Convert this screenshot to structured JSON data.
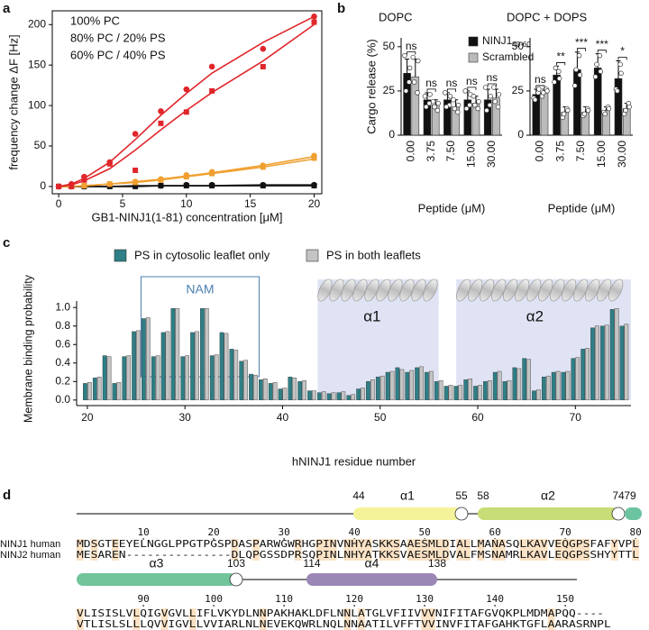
{
  "panel_labels": [
    "a",
    "b",
    "c",
    "d"
  ],
  "chart_data": [
    {
      "type": "line",
      "xlabel": "GB1-NINJ1(1-81) concentration [μM]",
      "ylabel": "frequency change ΔF [Hz]",
      "x": [
        0,
        1,
        2,
        4,
        6,
        8,
        10,
        12,
        16,
        20
      ],
      "xlim": [
        -0.5,
        20.6
      ],
      "ylim": [
        -9,
        217
      ],
      "xticks": [
        0,
        5,
        10,
        15,
        20
      ],
      "yticks": [
        0,
        50,
        100,
        150,
        200
      ],
      "legend": "upper left",
      "series": [
        {
          "name": "100% PC",
          "color": "#111111",
          "replicates": [
            {
              "marker": "circle",
              "values": [
                0,
                0,
                0,
                1,
                1,
                1,
                2,
                2,
                2,
                2
              ],
              "fit": [
                0,
                0,
                0,
                0,
                1,
                1,
                1,
                1,
                2,
                2
              ]
            },
            {
              "marker": "square",
              "values": [
                0,
                0,
                0,
                0,
                0,
                1,
                1,
                1,
                1,
                1
              ],
              "fit": [
                0,
                0,
                0,
                0,
                0,
                1,
                1,
                1,
                1,
                1
              ]
            }
          ]
        },
        {
          "name": "80% PC / 20% PS",
          "color": "#f0a030",
          "replicates": [
            {
              "marker": "circle",
              "values": [
                0,
                0,
                1,
                3,
                6,
                9,
                14,
                18,
                26,
                38
              ],
              "fit": [
                0,
                0,
                1,
                3,
                6,
                9,
                13,
                17,
                26,
                37
              ]
            },
            {
              "marker": "square",
              "values": [
                0,
                0,
                1,
                3,
                5,
                8,
                12,
                16,
                24,
                35
              ],
              "fit": [
                0,
                0,
                1,
                3,
                5,
                8,
                12,
                16,
                24,
                34
              ]
            }
          ]
        },
        {
          "name": "60% PC / 40% PS",
          "color": "#e0262b",
          "replicates": [
            {
              "marker": "circle",
              "values": [
                0,
                3,
                12,
                30,
                65,
                93,
                120,
                148,
                170,
                210
              ],
              "fit": [
                0,
                3,
                10,
                30,
                58,
                88,
                115,
                140,
                178,
                210
              ]
            },
            {
              "marker": "square",
              "values": [
                0,
                0,
                8,
                28,
                20,
                78,
                92,
                118,
                148,
                203
              ],
              "fit": [
                0,
                2,
                7,
                22,
                45,
                70,
                94,
                116,
                155,
                200
              ]
            }
          ]
        }
      ]
    },
    {
      "type": "bar",
      "title": "DOPC",
      "ylabel": "Cargo release (%)",
      "xlabel": "Peptide (μM)",
      "categories": [
        "0.00",
        "3.75",
        "7.50",
        "15.00",
        "30.00"
      ],
      "ylim": [
        0,
        55
      ],
      "yticks": [
        0,
        25,
        50
      ],
      "significance": [
        "ns",
        "ns",
        "ns",
        "ns",
        "ns"
      ],
      "series": [
        {
          "name": "NINJ1",
          "subscript": "40-60",
          "color": "#111111",
          "values": [
            35,
            20,
            20,
            20,
            20
          ],
          "errors": [
            8,
            4,
            4,
            5,
            6
          ],
          "points": [
            [
              45,
              30,
              25,
              38
            ],
            [
              22,
              18,
              16,
              23
            ],
            [
              24,
              17,
              16,
              22
            ],
            [
              25,
              17,
              15,
              23
            ],
            [
              27,
              17,
              14,
              22
            ]
          ]
        },
        {
          "name": "Scrambled",
          "color": "#bbbbbb",
          "values": [
            33,
            17,
            16,
            18,
            21
          ],
          "errors": [
            10,
            3,
            4,
            4,
            5
          ],
          "points": [
            [
              44,
              24,
              30,
              42
            ],
            [
              19,
              14,
              16,
              18
            ],
            [
              20,
              13,
              15,
              17
            ],
            [
              22,
              15,
              17,
              19
            ],
            [
              27,
              16,
              19,
              23
            ]
          ]
        }
      ]
    },
    {
      "type": "bar",
      "title": "DOPC + DOPS",
      "xlabel": "Peptide (μM)",
      "categories": [
        "0.00",
        "3.75",
        "7.50",
        "15.00",
        "30.00"
      ],
      "ylim": [
        0,
        55
      ],
      "yticks": [
        0,
        25,
        50
      ],
      "significance": [
        "ns",
        "**",
        "***",
        "***",
        "*"
      ],
      "series": [
        {
          "color": "#111111",
          "values": [
            23,
            34,
            37,
            38,
            32
          ],
          "errors": [
            3,
            5,
            10,
            8,
            10
          ],
          "points": [
            [
              21,
              24,
              20,
              26
            ],
            [
              30,
              36,
              38,
              32
            ],
            [
              28,
              45,
              37,
              34
            ],
            [
              33,
              45,
              40,
              36
            ],
            [
              26,
              40,
              25,
              35
            ]
          ]
        },
        {
          "color": "#bbbbbb",
          "values": [
            24,
            13,
            13,
            14,
            15
          ],
          "errors": [
            2,
            3,
            3,
            2,
            3
          ],
          "points": [
            [
              22,
              26,
              24,
              25
            ],
            [
              10,
              15,
              12,
              14
            ],
            [
              11,
              15,
              12,
              14
            ],
            [
              13,
              16,
              12,
              15
            ],
            [
              12,
              18,
              14,
              16
            ]
          ]
        }
      ]
    },
    {
      "type": "bar",
      "xlabel": "hNINJ1 residue number",
      "ylabel": "Membrane binding probability",
      "x": [
        20,
        21,
        22,
        23,
        24,
        25,
        26,
        27,
        28,
        29,
        30,
        31,
        32,
        33,
        34,
        35,
        36,
        37,
        38,
        39,
        40,
        41,
        42,
        43,
        44,
        45,
        46,
        47,
        48,
        49,
        50,
        51,
        52,
        53,
        54,
        55,
        56,
        57,
        58,
        59,
        60,
        61,
        62,
        63,
        64,
        65,
        66,
        67,
        68,
        69,
        70,
        71,
        72,
        73,
        74,
        75
      ],
      "xlim": [
        18.9,
        75.7
      ],
      "ylim": [
        -0.06,
        1.07
      ],
      "xticks": [
        20,
        30,
        40,
        50,
        60,
        70
      ],
      "yticks": [
        {
          "value": 0,
          "label": "0.0"
        },
        0.2,
        0.4,
        0.6,
        0.8,
        {
          "value": 1,
          "label": "1.0"
        }
      ],
      "annotations": [
        "NAM",
        "α1",
        "α2"
      ],
      "series": [
        {
          "name": "PS in cytosolic leaflet only",
          "color": "#2e7f86",
          "values": [
            0.18,
            0.24,
            0.48,
            0.18,
            0.47,
            0.74,
            0.88,
            0.47,
            0.73,
            0.99,
            0.47,
            0.73,
            0.99,
            0.48,
            0.73,
            0.55,
            0.42,
            0.28,
            0.22,
            0.18,
            0.12,
            0.25,
            0.2,
            0.1,
            0.08,
            0.07,
            0.08,
            0.05,
            0.12,
            0.2,
            0.25,
            0.3,
            0.35,
            0.3,
            0.35,
            0.3,
            0.2,
            0.15,
            0.15,
            0.22,
            0.15,
            0.2,
            0.3,
            0.2,
            0.35,
            0.45,
            0.1,
            0.25,
            0.3,
            0.3,
            0.45,
            0.55,
            0.78,
            0.8,
            0.98,
            0.8
          ]
        },
        {
          "name": "PS in both leaflets",
          "color": "#c4c4c4",
          "values": [
            0.19,
            0.25,
            0.47,
            0.19,
            0.48,
            0.75,
            0.89,
            0.48,
            0.74,
            0.99,
            0.48,
            0.74,
            0.99,
            0.49,
            0.72,
            0.54,
            0.43,
            0.27,
            0.23,
            0.19,
            0.13,
            0.24,
            0.21,
            0.1,
            0.09,
            0.08,
            0.09,
            0.06,
            0.13,
            0.22,
            0.26,
            0.31,
            0.33,
            0.32,
            0.36,
            0.31,
            0.21,
            0.16,
            0.16,
            0.23,
            0.16,
            0.21,
            0.31,
            0.21,
            0.34,
            0.44,
            0.11,
            0.26,
            0.31,
            0.31,
            0.46,
            0.56,
            0.8,
            0.81,
            0.99,
            0.82
          ]
        }
      ]
    }
  ],
  "alignment": {
    "blocks": [
      {
        "helices": [
          {
            "label": "α1",
            "start": 44,
            "end": 55
          },
          {
            "label": "α2",
            "start": 58,
            "end": 74
          },
          {
            "start": 79
          }
        ],
        "ruler": [
          10,
          20,
          30,
          40,
          50,
          60,
          70,
          80
        ],
        "rows": [
          {
            "name": "NINJ1 human",
            "sequence": "MDSGTEEYELNGGLPPGTPGSPDASPARWGWRHGPINVNHYASKKSAAESMLDIALLMANASQLKAVVEQGPSFAFYVPL"
          },
          {
            "name": "NINJ2 human",
            "sequence": "MESAREN---------------DLQPGSSDPRSQPINLNHYATKKSVAESMLDVALFMSNAMRLKAVLEQGPSSHYYTTL"
          }
        ]
      },
      {
        "helices": [
          {
            "label": "α3",
            "end": 103
          },
          {
            "label": "α4",
            "start": 114,
            "end": 138
          }
        ],
        "ruler": [
          90,
          100,
          110,
          120,
          130,
          140,
          150
        ],
        "rows": [
          {
            "sequence": "VLISISLVLQIGVGVLLIFLVKYDLNNPAKHAKLDFLNNLATGLVFIIVVVNIFITAFGVQKPLMDMAPQQ----"
          },
          {
            "sequence": "VTLISLSLLLQVVIGVLLVVIARLNLNEVEKQWRLNQLNNAATILVFFTVVINVFITAFGAHKTGFLAARASRNPL"
          }
        ]
      }
    ]
  }
}
